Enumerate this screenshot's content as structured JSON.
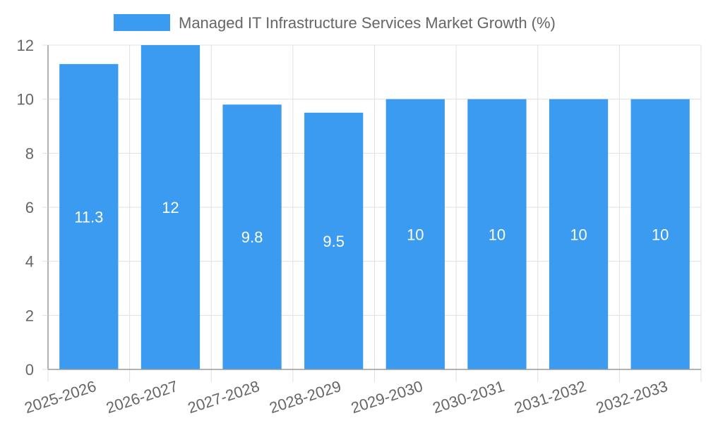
{
  "chart_data": {
    "type": "bar",
    "title": "",
    "legend": {
      "label": "Managed IT Infrastructure Services Market Growth (%)",
      "position": "top"
    },
    "categories": [
      "2025-2026",
      "2026-2027",
      "2027-2028",
      "2028-2029",
      "2029-2030",
      "2030-2031",
      "2031-2032",
      "2032-2033"
    ],
    "series": [
      {
        "name": "Managed IT Infrastructure Services Market Growth (%)",
        "values": [
          11.3,
          12,
          9.8,
          9.5,
          10,
          10,
          10,
          10
        ]
      }
    ],
    "data_labels": [
      "11.3",
      "12",
      "9.8",
      "9.5",
      "10",
      "10",
      "10",
      "10"
    ],
    "xlabel": "",
    "ylabel": "",
    "ylim": [
      0,
      12
    ],
    "yticks": [
      0,
      2,
      4,
      6,
      8,
      10,
      12
    ],
    "grid": true,
    "colors": {
      "bar": "#3a9bf0",
      "grid": "#e0e0e0",
      "axis": "#999999",
      "text": "#666666",
      "label": "#ffffff"
    }
  }
}
